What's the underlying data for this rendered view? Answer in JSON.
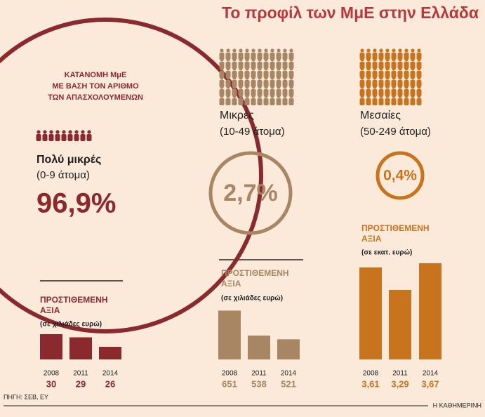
{
  "title": "Το προφίλ των ΜμΕ στην Ελλάδα",
  "subtitle": [
    "ΚΑΤΑΝΟΜΗ ΜμΕ",
    "ΜΕ ΒΑΣΗ ΤΟΝ ΑΡΙΘΜΟ",
    "ΤΩΝ ΑΠΑΣΧΟΛΟΥΜΕΝΩΝ"
  ],
  "groups": [
    {
      "name": "Πολύ μικρές",
      "range": "(0-9 άτομα)",
      "share": 96.9,
      "share_label": "96,9%",
      "color": "#8b2a2e"
    },
    {
      "name": "Μικρές",
      "range": "(10-49 άτομα)",
      "share": 2.7,
      "share_label": "2,7%",
      "color": "#a88664"
    },
    {
      "name": "Μεσαίες",
      "range": "(50-249 άτομα)",
      "share": 0.4,
      "share_label": "0,4%",
      "color": "#c8741e"
    }
  ],
  "chart_data": [
    {
      "type": "bar",
      "title": [
        "ΠΡΟΣΤΙΘΕΜΕΝΗ",
        "ΑΞΙΑ"
      ],
      "subtitle": "(σε χιλιάδες ευρώ)",
      "categories": [
        "2008",
        "2011",
        "2014"
      ],
      "values": [
        30,
        29,
        26
      ],
      "color": "#8b2a2e",
      "ylim": [
        22,
        32
      ]
    },
    {
      "type": "bar",
      "title": [
        "ΠΡΟΣΤΙΘΕΜΕΝΗ",
        "ΑΞΙΑ"
      ],
      "subtitle": "(σε χιλιάδες ευρώ)",
      "categories": [
        "2008",
        "2011",
        "2014"
      ],
      "values": [
        651,
        538,
        521
      ],
      "color": "#a88664",
      "ylim": [
        430,
        700
      ]
    },
    {
      "type": "bar",
      "title": [
        "ΠΡΟΣΤΙΘΕΜΕΝΗ",
        "ΑΞΙΑ"
      ],
      "subtitle": "(σε εκατ. ευρώ)",
      "categories": [
        "2008",
        "2011",
        "2014"
      ],
      "values": [
        3.61,
        3.29,
        3.67
      ],
      "value_labels": [
        "3,61",
        "3,29",
        "3,67"
      ],
      "color": "#c8741e",
      "ylim": [
        2.3,
        3.8
      ]
    }
  ],
  "footer": {
    "source": "ΠΗΓΗ: ΣΕΒ, ΕΥ",
    "brand": "Η ΚΑΘΗΜΕΡΙΝΗ"
  }
}
